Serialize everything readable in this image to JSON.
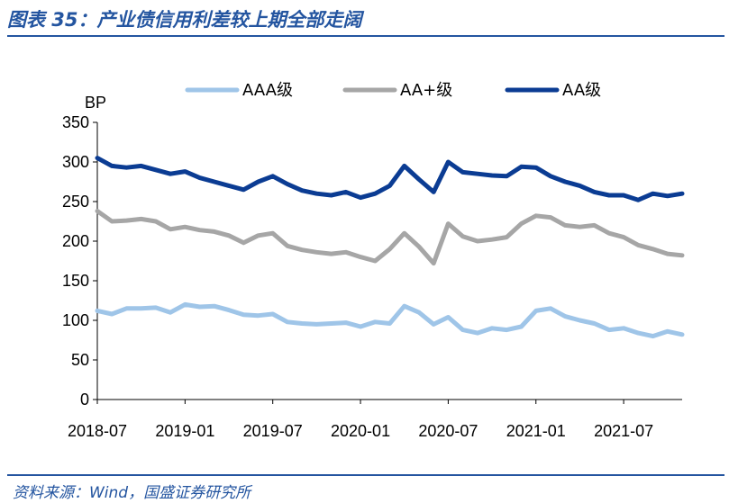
{
  "title": "图表 35：产业债信用利差较上期全部走阔",
  "source": "资料来源：Wind，国盛证券研究所",
  "colors": {
    "accent": "#2455a0",
    "AAA": "#9fc5e8",
    "AA+": "#a6a6a6",
    "AA": "#0b3c93"
  },
  "chart_data": {
    "type": "line",
    "ylabel": "BP",
    "xlabel": "",
    "ylim": [
      0,
      350
    ],
    "yticks": [
      "0",
      "50",
      "100",
      "150",
      "200",
      "250",
      "300",
      "350"
    ],
    "xticks": [
      "2018-07",
      "2019-01",
      "2019-07",
      "2020-01",
      "2020-07",
      "2021-01",
      "2021-07"
    ],
    "x_range": [
      "2018-07",
      "2021-11"
    ],
    "legend_position": "top",
    "grid": false,
    "x": [
      "2018-07",
      "2018-08",
      "2018-09",
      "2018-10",
      "2018-11",
      "2018-12",
      "2019-01",
      "2019-02",
      "2019-03",
      "2019-04",
      "2019-05",
      "2019-06",
      "2019-07",
      "2019-08",
      "2019-09",
      "2019-10",
      "2019-11",
      "2019-12",
      "2020-01",
      "2020-02",
      "2020-03",
      "2020-04",
      "2020-05",
      "2020-06",
      "2020-07",
      "2020-08",
      "2020-09",
      "2020-10",
      "2020-11",
      "2020-12",
      "2021-01",
      "2021-02",
      "2021-03",
      "2021-04",
      "2021-05",
      "2021-06",
      "2021-07",
      "2021-08",
      "2021-09",
      "2021-10",
      "2021-11"
    ],
    "series": [
      {
        "name": "AAA级",
        "values": [
          112,
          108,
          115,
          115,
          116,
          110,
          120,
          117,
          118,
          113,
          107,
          106,
          108,
          98,
          96,
          95,
          96,
          97,
          92,
          98,
          96,
          118,
          110,
          95,
          104,
          88,
          84,
          90,
          88,
          92,
          112,
          115,
          105,
          100,
          96,
          88,
          90,
          84,
          80,
          86,
          82
        ]
      },
      {
        "name": "AA+级",
        "values": [
          238,
          225,
          226,
          228,
          225,
          215,
          218,
          214,
          212,
          207,
          198,
          207,
          210,
          194,
          189,
          186,
          184,
          186,
          180,
          175,
          190,
          210,
          193,
          172,
          222,
          206,
          200,
          202,
          205,
          222,
          232,
          230,
          220,
          218,
          220,
          210,
          205,
          195,
          190,
          184,
          182
        ]
      },
      {
        "name": "AA级",
        "values": [
          305,
          295,
          293,
          295,
          290,
          285,
          288,
          280,
          275,
          270,
          265,
          275,
          282,
          272,
          264,
          260,
          258,
          262,
          255,
          260,
          270,
          295,
          278,
          262,
          300,
          287,
          285,
          283,
          282,
          294,
          293,
          282,
          275,
          270,
          262,
          258,
          258,
          252,
          260,
          257,
          260
        ]
      }
    ]
  }
}
